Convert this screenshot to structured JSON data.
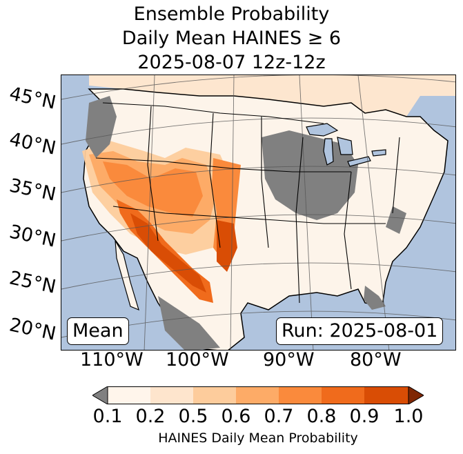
{
  "title": {
    "line1": "Ensemble Probability",
    "line2": "Daily Mean HAINES ≥ 6",
    "line3": "2025-08-07 12z-12z"
  },
  "map": {
    "lat_labels": [
      "45°N",
      "40°N",
      "35°N",
      "30°N",
      "25°N",
      "20°N"
    ],
    "lon_labels": [
      "110°W",
      "100°W",
      "90°W",
      "80°W"
    ],
    "mean_label": "Mean",
    "run_label": "Run: 2025-08-01",
    "colors": {
      "ocean": "#b0c4de",
      "land": "#fdf4ea",
      "missing": "#808080"
    }
  },
  "colorbar": {
    "ticks": [
      "0.1",
      "0.2",
      "0.5",
      "0.6",
      "0.7",
      "0.8",
      "0.9",
      "1.0"
    ],
    "colors": [
      "#fff5eb",
      "#fee5cd",
      "#fdcc9c",
      "#fdab67",
      "#fa8a3c",
      "#f06b1c",
      "#d94d05",
      "#a63603"
    ],
    "under_color": "#808080",
    "over_color": "#7f2704",
    "label": "HAINES Daily Mean Probability"
  }
}
